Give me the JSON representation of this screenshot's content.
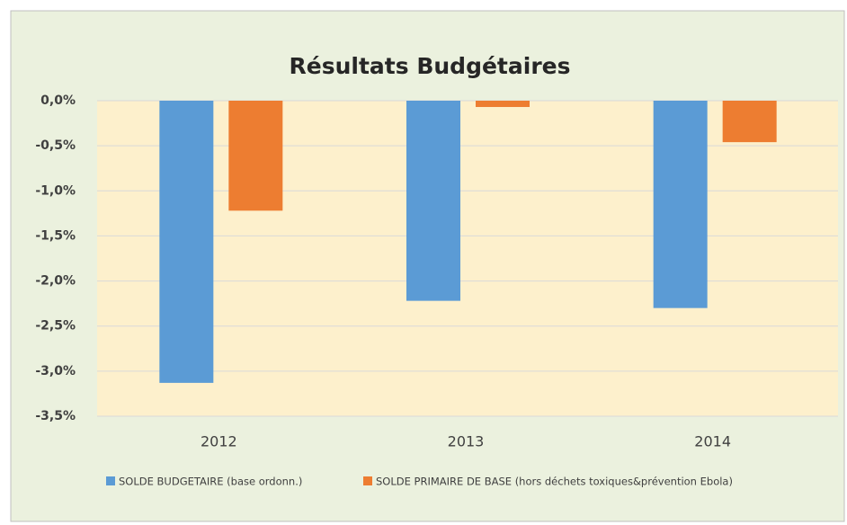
{
  "chart_data": {
    "type": "bar",
    "title": "Résultats Budgétaires",
    "categories": [
      "2012",
      "2013",
      "2014"
    ],
    "series": [
      {
        "name": "SOLDE BUDGETAIRE (base ordonn.)",
        "color": "#5b9bd5",
        "values": [
          -3.13,
          -2.22,
          -2.3
        ]
      },
      {
        "name": "SOLDE PRIMAIRE DE BASE (hors déchets toxiques&prévention Ebola)",
        "color": "#ed7d31",
        "values": [
          -1.22,
          -0.07,
          -0.46
        ]
      }
    ],
    "ylim": [
      -3.5,
      0
    ],
    "yticks": [
      {
        "value": 0,
        "label": "0,0%"
      },
      {
        "value": -0.5,
        "label": "-0,5%"
      },
      {
        "value": -1,
        "label": "-1,0%"
      },
      {
        "value": -1.5,
        "label": "-1,5%"
      },
      {
        "value": -2,
        "label": "-2,0%"
      },
      {
        "value": -2.5,
        "label": "-2,5%"
      },
      {
        "value": -3,
        "label": "-3,0%"
      },
      {
        "value": -3.5,
        "label": "-3,5%"
      }
    ],
    "grid": true
  }
}
